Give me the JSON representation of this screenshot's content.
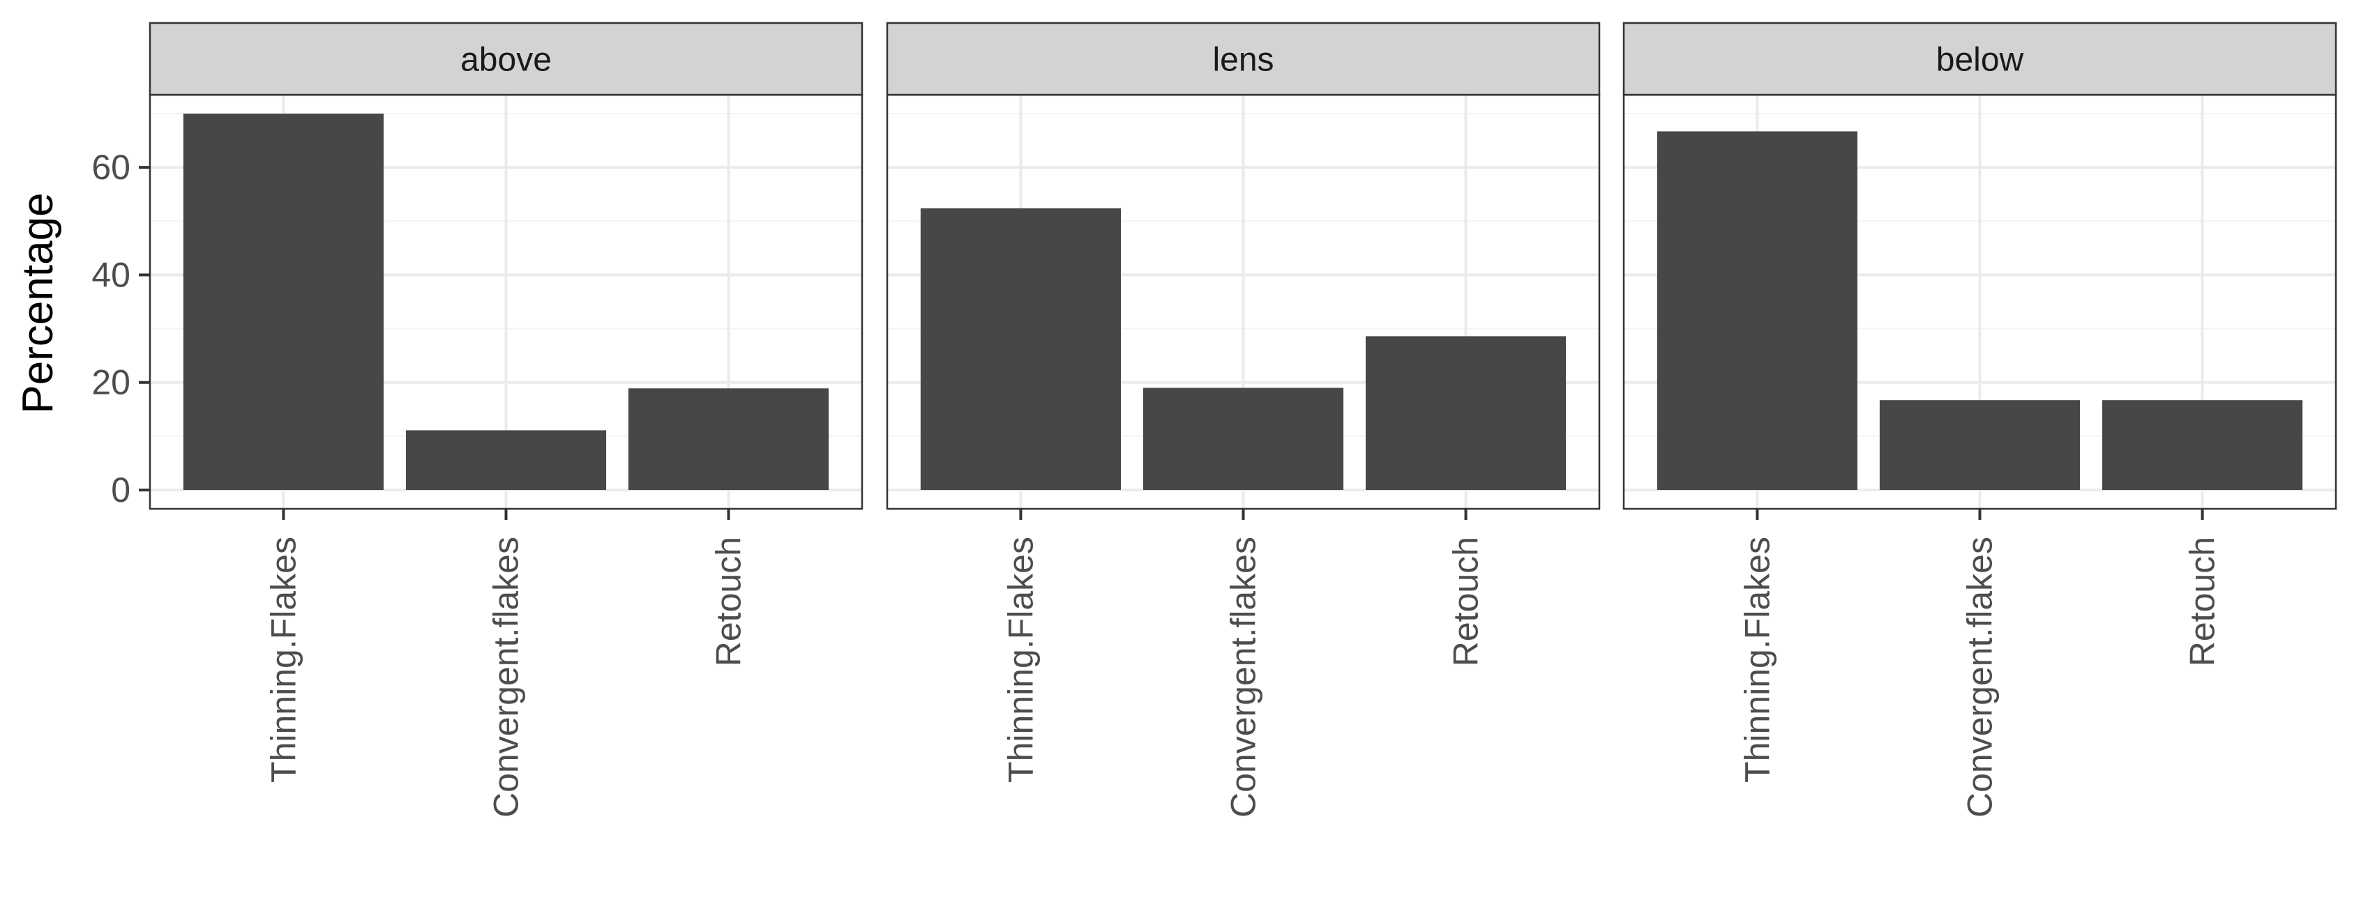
{
  "chart_data": {
    "type": "bar",
    "facet_by": "position",
    "categories": [
      "Thinning.Flakes",
      "Convergent.flakes",
      "Retouch"
    ],
    "ylabel": "Percentage",
    "xlabel": "",
    "ylim": [
      -3.5,
      73.5
    ],
    "yticks": [
      0,
      20,
      40,
      60
    ],
    "grid": true,
    "colors": {
      "bar": "#474747",
      "strip_fill": "#d3d3d3",
      "panel_border": "#333333",
      "grid_major": "#ebebeb",
      "grid_minor": "#f3f3f3",
      "text": "#4d4d4d",
      "strip_text": "#1a1a1a"
    },
    "panels": [
      {
        "facet": "above",
        "values": [
          70,
          11.1,
          18.9
        ]
      },
      {
        "facet": "lens",
        "values": [
          52.4,
          19,
          28.6
        ]
      },
      {
        "facet": "below",
        "values": [
          66.7,
          16.7,
          16.7
        ]
      }
    ]
  }
}
